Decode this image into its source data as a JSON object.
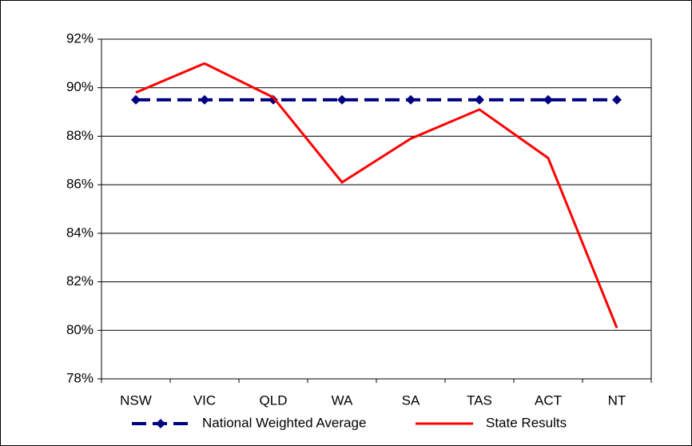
{
  "chart_data": {
    "type": "line",
    "categories": [
      "NSW",
      "VIC",
      "QLD",
      "WA",
      "SA",
      "TAS",
      "ACT",
      "NT"
    ],
    "series": [
      {
        "name": "National Weighted Average",
        "color": "#000080",
        "line_style": "dashed",
        "marker": "diamond",
        "values": [
          89.5,
          89.5,
          89.5,
          89.5,
          89.5,
          89.5,
          89.5,
          89.5
        ]
      },
      {
        "name": "State Results",
        "color": "#ff0000",
        "line_style": "solid",
        "marker": "none",
        "values": [
          89.8,
          91.0,
          89.6,
          86.1,
          87.9,
          89.1,
          87.1,
          80.1
        ]
      }
    ],
    "ylim": [
      78,
      92
    ],
    "yticks": [
      {
        "value": 78,
        "label": "78%"
      },
      {
        "value": 80,
        "label": "80%"
      },
      {
        "value": 82,
        "label": "82%"
      },
      {
        "value": 84,
        "label": "84%"
      },
      {
        "value": 86,
        "label": "86%"
      },
      {
        "value": 88,
        "label": "88%"
      },
      {
        "value": 90,
        "label": "90%"
      },
      {
        "value": 92,
        "label": "92%"
      }
    ],
    "grid": true,
    "legend": "bottom"
  }
}
